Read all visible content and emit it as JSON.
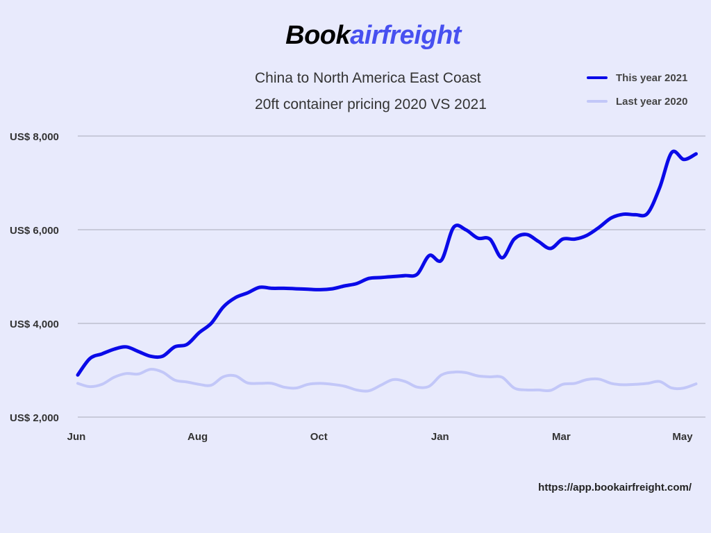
{
  "logo": {
    "part1": "Book",
    "part2": "airfreight"
  },
  "colors": {
    "background": "#e8eafc",
    "series_2021": "#0a0ae8",
    "series_2020": "#c2c7f8",
    "grid": "#a9a9b8",
    "logo_accent": "#4750f0"
  },
  "chart_data": {
    "type": "line",
    "title": "China to North America East Coast",
    "subtitle": "20ft container pricing 2020 VS 2021",
    "xlabel": "",
    "ylabel": "",
    "ylim": [
      2000,
      8000
    ],
    "y_ticks": [
      2000,
      4000,
      6000,
      8000
    ],
    "y_tick_labels": [
      "US$ 2,000",
      "US$ 4,000",
      "US$ 6,000",
      "US$ 8,000"
    ],
    "x_range_months": [
      0,
      11
    ],
    "x_ticks": [
      {
        "label": "Jun",
        "month": 0
      },
      {
        "label": "Aug",
        "month": 2
      },
      {
        "label": "Oct",
        "month": 4
      },
      {
        "label": "Jan",
        "month": 6
      },
      {
        "label": "Mar",
        "month": 8
      },
      {
        "label": "May",
        "month": 10
      }
    ],
    "legend_position": "top-right",
    "grid": true,
    "series": [
      {
        "name": "This year 2021",
        "x": [
          0,
          0.2,
          0.4,
          0.6,
          0.8,
          1.0,
          1.2,
          1.4,
          1.6,
          1.8,
          2.0,
          2.2,
          2.4,
          2.6,
          2.8,
          3.0,
          3.2,
          3.4,
          3.6,
          3.8,
          4.0,
          4.2,
          4.4,
          4.6,
          4.8,
          5.0,
          5.2,
          5.4,
          5.6,
          5.8,
          6.0,
          6.2,
          6.4,
          6.6,
          6.8,
          7.0,
          7.2,
          7.4,
          7.6,
          7.8,
          8.0,
          8.2,
          8.4,
          8.6,
          8.8,
          9.0,
          9.2,
          9.4,
          9.6,
          9.8,
          10.0,
          10.2
        ],
        "values": [
          2900,
          3250,
          3350,
          3450,
          3500,
          3400,
          3300,
          3300,
          3500,
          3550,
          3800,
          4000,
          4350,
          4550,
          4650,
          4770,
          4750,
          4750,
          4740,
          4730,
          4720,
          4740,
          4800,
          4850,
          4960,
          4980,
          5000,
          5020,
          5050,
          5450,
          5350,
          6050,
          6000,
          5820,
          5800,
          5400,
          5800,
          5900,
          5750,
          5600,
          5800,
          5800,
          5880,
          6050,
          6250,
          6330,
          6320,
          6350,
          6900,
          7650,
          7500,
          7620
        ]
      },
      {
        "name": "Last year 2020",
        "x": [
          0,
          0.2,
          0.4,
          0.6,
          0.8,
          1.0,
          1.2,
          1.4,
          1.6,
          1.8,
          2.0,
          2.2,
          2.4,
          2.6,
          2.8,
          3.0,
          3.2,
          3.4,
          3.6,
          3.8,
          4.0,
          4.2,
          4.4,
          4.6,
          4.8,
          5.0,
          5.2,
          5.4,
          5.6,
          5.8,
          6.0,
          6.2,
          6.4,
          6.6,
          6.8,
          7.0,
          7.2,
          7.4,
          7.6,
          7.8,
          8.0,
          8.2,
          8.4,
          8.6,
          8.8,
          9.0,
          9.2,
          9.4,
          9.6,
          9.8,
          10.0,
          10.2
        ],
        "values": [
          2720,
          2650,
          2700,
          2850,
          2930,
          2920,
          3020,
          2960,
          2790,
          2750,
          2700,
          2680,
          2860,
          2880,
          2730,
          2720,
          2720,
          2640,
          2620,
          2700,
          2720,
          2700,
          2660,
          2580,
          2560,
          2680,
          2800,
          2760,
          2640,
          2660,
          2900,
          2960,
          2950,
          2880,
          2860,
          2850,
          2620,
          2580,
          2580,
          2570,
          2700,
          2720,
          2800,
          2810,
          2720,
          2690,
          2700,
          2720,
          2760,
          2620,
          2620,
          2710
        ]
      }
    ]
  },
  "footer": {
    "url": "https://app.bookairfreight.com/"
  }
}
